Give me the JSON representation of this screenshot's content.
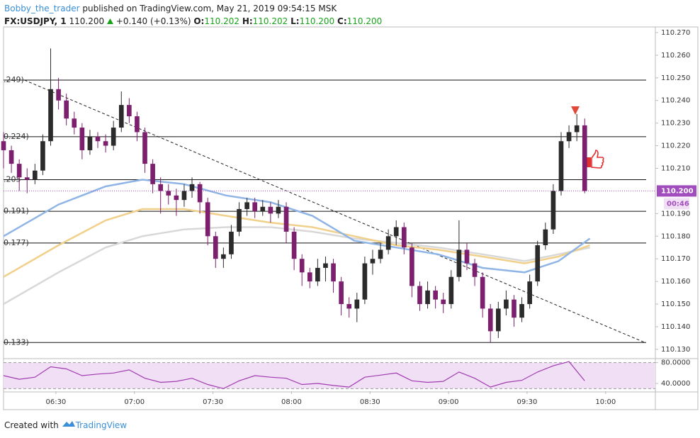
{
  "header": {
    "author": "Bobby_the_trader",
    "published": "published on TradingView.com, May 21, 2019 09:54:15 MSK",
    "symbol": "FX:USDJPY, 1",
    "last": "110.200",
    "change": "+0.140 (+0.13%)",
    "ohlc": [
      {
        "label": "O:",
        "value": "110.202"
      },
      {
        "label": "H:",
        "value": "110.202"
      },
      {
        "label": "L:",
        "value": "110.200"
      },
      {
        "label": "C:",
        "value": "110.200"
      }
    ]
  },
  "footer": {
    "text": "Created with",
    "brand": "TradingView"
  },
  "chart_data": {
    "type": "candlestick",
    "up_color": "#2b2b2b",
    "down_color": "#7b1f6e",
    "x": [
      "06:10",
      "06:13",
      "06:16",
      "06:19",
      "06:22",
      "06:25",
      "06:28",
      "06:31",
      "06:34",
      "06:37",
      "06:40",
      "06:43",
      "06:46",
      "06:49",
      "06:52",
      "06:55",
      "06:58",
      "07:01",
      "07:04",
      "07:07",
      "07:10",
      "07:13",
      "07:16",
      "07:19",
      "07:22",
      "07:25",
      "07:28",
      "07:31",
      "07:34",
      "07:37",
      "07:40",
      "07:43",
      "07:46",
      "07:49",
      "07:52",
      "07:55",
      "07:58",
      "08:01",
      "08:04",
      "08:07",
      "08:10",
      "08:13",
      "08:16",
      "08:19",
      "08:22",
      "08:25",
      "08:28",
      "08:31",
      "08:34",
      "08:37",
      "08:40",
      "08:43",
      "08:46",
      "08:49",
      "08:52",
      "08:55",
      "08:58",
      "09:01",
      "09:04",
      "09:07",
      "09:10",
      "09:13",
      "09:16",
      "09:19",
      "09:22",
      "09:25",
      "09:28",
      "09:31",
      "09:34",
      "09:37",
      "09:40",
      "09:43",
      "09:46",
      "09:49",
      "09:52"
    ],
    "open": [
      110.222,
      110.218,
      110.212,
      110.206,
      110.205,
      110.209,
      110.222,
      110.245,
      110.24,
      110.232,
      110.228,
      110.218,
      110.224,
      110.222,
      110.22,
      110.228,
      110.238,
      110.233,
      110.226,
      110.212,
      110.203,
      110.2,
      110.198,
      110.196,
      110.2,
      110.203,
      110.195,
      110.18,
      110.17,
      110.172,
      110.182,
      110.192,
      110.195,
      110.191,
      110.193,
      110.19,
      110.193,
      110.182,
      110.17,
      110.164,
      110.16,
      110.166,
      110.168,
      110.16,
      110.15,
      110.148,
      110.152,
      110.168,
      110.17,
      110.174,
      110.18,
      110.184,
      110.175,
      110.158,
      110.15,
      110.156,
      110.152,
      110.15,
      110.162,
      110.174,
      110.168,
      110.162,
      110.148,
      110.138,
      110.148,
      110.152,
      110.144,
      110.15,
      110.16,
      110.176,
      110.183,
      110.2,
      110.222,
      110.226,
      110.229
    ],
    "high": [
      110.226,
      110.22,
      110.214,
      110.21,
      110.212,
      110.225,
      110.263,
      110.25,
      110.243,
      110.235,
      110.23,
      110.227,
      110.226,
      110.225,
      110.231,
      110.244,
      110.241,
      110.235,
      110.228,
      110.214,
      110.206,
      110.203,
      110.201,
      110.203,
      110.206,
      110.204,
      110.197,
      110.182,
      110.175,
      110.185,
      110.195,
      110.197,
      110.197,
      110.196,
      110.195,
      110.196,
      110.195,
      110.184,
      110.172,
      110.166,
      110.17,
      110.171,
      110.17,
      110.162,
      110.153,
      110.155,
      110.171,
      110.174,
      110.177,
      110.183,
      110.187,
      110.186,
      110.177,
      110.16,
      110.16,
      110.158,
      110.155,
      110.165,
      110.187,
      110.177,
      110.17,
      110.164,
      110.15,
      110.151,
      110.156,
      110.154,
      110.153,
      110.163,
      110.178,
      110.186,
      110.203,
      110.226,
      110.229,
      110.234,
      110.232
    ],
    "low": [
      110.21,
      110.208,
      110.2,
      110.199,
      110.203,
      110.207,
      110.22,
      110.236,
      110.229,
      110.225,
      110.214,
      110.216,
      110.219,
      110.217,
      110.218,
      110.226,
      110.23,
      110.222,
      110.208,
      110.199,
      110.19,
      110.194,
      110.189,
      110.193,
      110.197,
      110.19,
      110.176,
      110.166,
      110.166,
      110.17,
      110.18,
      110.189,
      110.188,
      110.189,
      110.186,
      110.188,
      110.177,
      110.165,
      110.158,
      110.157,
      110.158,
      110.16,
      110.155,
      110.145,
      110.144,
      110.142,
      110.15,
      110.163,
      110.168,
      110.172,
      110.176,
      110.172,
      110.153,
      110.147,
      110.148,
      110.148,
      110.146,
      110.148,
      110.16,
      110.165,
      110.158,
      110.144,
      110.133,
      110.135,
      110.145,
      110.14,
      110.142,
      110.148,
      110.158,
      110.174,
      110.181,
      110.198,
      110.219,
      110.222,
      110.199
    ],
    "close": [
      110.218,
      110.212,
      110.206,
      110.205,
      110.209,
      110.222,
      110.245,
      110.24,
      110.232,
      110.228,
      110.218,
      110.224,
      110.222,
      110.22,
      110.228,
      110.238,
      110.233,
      110.226,
      110.212,
      110.203,
      110.2,
      110.198,
      110.196,
      110.2,
      110.203,
      110.195,
      110.18,
      110.17,
      110.172,
      110.182,
      110.192,
      110.195,
      110.191,
      110.193,
      110.19,
      110.193,
      110.182,
      110.17,
      110.164,
      110.16,
      110.166,
      110.168,
      110.16,
      110.15,
      110.148,
      110.152,
      110.168,
      110.17,
      110.174,
      110.18,
      110.184,
      110.175,
      110.158,
      110.15,
      110.156,
      110.152,
      110.15,
      110.162,
      110.174,
      110.168,
      110.162,
      110.148,
      110.138,
      110.148,
      110.152,
      110.144,
      110.15,
      110.16,
      110.176,
      110.183,
      110.2,
      110.222,
      110.226,
      110.229,
      110.2
    ],
    "moving_averages": [
      {
        "color": "#d8d8d8",
        "x": [
          "06:10",
          "06:31",
          "06:49",
          "07:03",
          "07:19",
          "07:35",
          "07:52",
          "08:08",
          "08:24",
          "08:40",
          "08:56",
          "09:13",
          "09:29",
          "09:42",
          "09:54"
        ],
        "values": [
          110.15,
          110.164,
          110.175,
          110.18,
          110.183,
          110.184,
          110.184,
          110.182,
          110.179,
          110.177,
          110.175,
          110.172,
          110.169,
          110.172,
          110.175
        ]
      },
      {
        "color": "#f0d08a",
        "x": [
          "06:10",
          "06:31",
          "06:49",
          "07:03",
          "07:19",
          "07:35",
          "07:52",
          "08:08",
          "08:24",
          "08:40",
          "08:56",
          "09:13",
          "09:29",
          "09:42",
          "09:54"
        ],
        "values": [
          110.162,
          110.176,
          110.187,
          110.192,
          110.192,
          110.189,
          110.186,
          110.184,
          110.18,
          110.176,
          110.174,
          110.171,
          110.168,
          110.171,
          110.176
        ]
      },
      {
        "color": "#8fb4e6",
        "x": [
          "06:10",
          "06:31",
          "06:49",
          "07:03",
          "07:19",
          "07:35",
          "07:52",
          "08:08",
          "08:24",
          "08:40",
          "08:56",
          "09:13",
          "09:29",
          "09:42",
          "09:54"
        ],
        "values": [
          110.18,
          110.194,
          110.202,
          110.205,
          110.203,
          110.198,
          110.195,
          110.189,
          110.178,
          110.175,
          110.172,
          110.166,
          110.164,
          110.169,
          110.179
        ]
      }
    ],
    "levels": [
      {
        "value": 110.249,
        "label": ".249)"
      },
      {
        "value": 110.224,
        "label": "0.224)"
      },
      {
        "value": 110.205,
        "label": ".205"
      },
      {
        "value": 110.191,
        "label": "0.191)"
      },
      {
        "value": 110.177,
        "label": "0.177)"
      },
      {
        "value": 110.133,
        "label": "0.133)"
      }
    ],
    "trendline": {
      "x": [
        "06:18",
        "10:15"
      ],
      "values": [
        110.249,
        110.133
      ]
    },
    "last_price": {
      "value": 110.2,
      "label": "110.200",
      "countdown": "00:46",
      "color": "#a24dbd"
    },
    "xlim": [
      "06:10",
      "10:19"
    ],
    "xticks": [
      "06:30",
      "07:00",
      "07:30",
      "08:00",
      "08:30",
      "09:00",
      "09:30",
      "10:00"
    ],
    "ylim": [
      110.1262,
      110.2725
    ],
    "yticks": [
      {
        "value": 110.13,
        "label": "110.130"
      },
      {
        "value": 110.14,
        "label": "110.140"
      },
      {
        "value": 110.15,
        "label": "110.150"
      },
      {
        "value": 110.16,
        "label": "110.160"
      },
      {
        "value": 110.17,
        "label": "110.170"
      },
      {
        "value": 110.18,
        "label": "110.180"
      },
      {
        "value": 110.19,
        "label": "110.190"
      },
      {
        "value": 110.21,
        "label": "110.210"
      },
      {
        "value": 110.22,
        "label": "110.220"
      },
      {
        "value": 110.23,
        "label": "110.230"
      },
      {
        "value": 110.24,
        "label": "110.240"
      },
      {
        "value": 110.25,
        "label": "110.250"
      },
      {
        "value": 110.26,
        "label": "110.260"
      },
      {
        "value": 110.27,
        "label": "110.270"
      }
    ],
    "rsi": {
      "color": "#a03cb0",
      "band": [
        30,
        80
      ],
      "band_color": "#f1dff6",
      "x": [
        "06:10",
        "06:16",
        "06:22",
        "06:28",
        "06:34",
        "06:40",
        "06:46",
        "06:52",
        "06:58",
        "07:04",
        "07:10",
        "07:16",
        "07:22",
        "07:28",
        "07:34",
        "07:40",
        "07:46",
        "07:52",
        "07:58",
        "08:04",
        "08:10",
        "08:16",
        "08:22",
        "08:28",
        "08:34",
        "08:40",
        "08:46",
        "08:52",
        "08:58",
        "09:04",
        "09:10",
        "09:16",
        "09:22",
        "09:28",
        "09:34",
        "09:40",
        "09:46",
        "09:52"
      ],
      "values": [
        55,
        48,
        52,
        72,
        68,
        55,
        58,
        60,
        66,
        50,
        42,
        44,
        50,
        38,
        30,
        45,
        55,
        52,
        50,
        38,
        40,
        36,
        33,
        52,
        56,
        60,
        45,
        42,
        44,
        62,
        50,
        33,
        42,
        46,
        62,
        74,
        82,
        45
      ],
      "ylim": [
        25,
        85
      ],
      "yticks": [
        {
          "value": 80,
          "label": "80.0000"
        },
        {
          "value": 40,
          "label": "40.0000"
        }
      ]
    }
  }
}
